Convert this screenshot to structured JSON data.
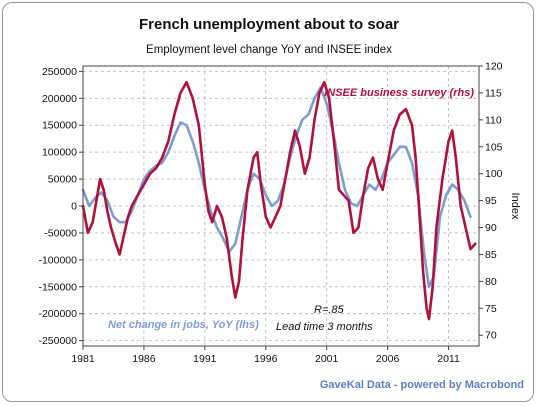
{
  "chart_data": {
    "type": "line",
    "title": "French unemployment about to soar",
    "subtitle": "Employment level change YoY and INSEE index",
    "xlabel": "",
    "ylabel_left": "",
    "ylabel_right": "Index",
    "xlim": [
      1981,
      2013.5
    ],
    "ylim_left": [
      -260000,
      260000
    ],
    "ylim_right": [
      68,
      120
    ],
    "x_ticks": [
      "1981",
      "1986",
      "1991",
      "1996",
      "2001",
      "2006",
      "2011"
    ],
    "y_ticks_left": [
      "250000",
      "200000",
      "150000",
      "100000",
      "50000",
      "0",
      "-50000",
      "-100000",
      "-150000",
      "-200000",
      "-250000"
    ],
    "y_ticks_right": [
      "120",
      "115",
      "110",
      "105",
      "100",
      "95",
      "90",
      "85",
      "80",
      "75",
      "70"
    ],
    "grid": true,
    "series": [
      {
        "name": "INSEE business survey (rhs)",
        "axis": "right",
        "color": "#b0113a",
        "points": [
          [
            1981.0,
            94
          ],
          [
            1981.4,
            89
          ],
          [
            1981.8,
            91
          ],
          [
            1982.1,
            95
          ],
          [
            1982.4,
            99
          ],
          [
            1982.7,
            97
          ],
          [
            1983.0,
            93
          ],
          [
            1983.3,
            90
          ],
          [
            1983.7,
            87
          ],
          [
            1984.0,
            85
          ],
          [
            1984.3,
            88
          ],
          [
            1984.7,
            92
          ],
          [
            1985.0,
            94
          ],
          [
            1985.5,
            96
          ],
          [
            1986.0,
            98
          ],
          [
            1986.5,
            100
          ],
          [
            1987.0,
            101
          ],
          [
            1987.5,
            103
          ],
          [
            1988.0,
            106
          ],
          [
            1988.5,
            111
          ],
          [
            1989.0,
            115
          ],
          [
            1989.5,
            117
          ],
          [
            1990.0,
            114
          ],
          [
            1990.5,
            109
          ],
          [
            1991.0,
            98
          ],
          [
            1991.3,
            93
          ],
          [
            1991.6,
            91
          ],
          [
            1992.0,
            94
          ],
          [
            1992.4,
            92
          ],
          [
            1992.8,
            88
          ],
          [
            1993.2,
            81
          ],
          [
            1993.5,
            77
          ],
          [
            1993.8,
            80
          ],
          [
            1994.1,
            88
          ],
          [
            1994.5,
            97
          ],
          [
            1995.0,
            103
          ],
          [
            1995.3,
            104
          ],
          [
            1995.6,
            98
          ],
          [
            1996.0,
            92
          ],
          [
            1996.4,
            90
          ],
          [
            1996.8,
            92
          ],
          [
            1997.2,
            94
          ],
          [
            1997.6,
            99
          ],
          [
            1998.0,
            104
          ],
          [
            1998.4,
            108
          ],
          [
            1998.8,
            105
          ],
          [
            1999.2,
            100
          ],
          [
            1999.6,
            103
          ],
          [
            2000.0,
            110
          ],
          [
            2000.4,
            115
          ],
          [
            2000.8,
            117
          ],
          [
            2001.2,
            114
          ],
          [
            2001.6,
            106
          ],
          [
            2002.0,
            97
          ],
          [
            2002.4,
            96
          ],
          [
            2002.8,
            95
          ],
          [
            2003.2,
            89
          ],
          [
            2003.6,
            90
          ],
          [
            2004.0,
            96
          ],
          [
            2004.4,
            101
          ],
          [
            2004.8,
            103
          ],
          [
            2005.2,
            99
          ],
          [
            2005.6,
            97
          ],
          [
            2006.0,
            102
          ],
          [
            2006.5,
            108
          ],
          [
            2007.0,
            111
          ],
          [
            2007.5,
            112
          ],
          [
            2008.0,
            109
          ],
          [
            2008.3,
            103
          ],
          [
            2008.6,
            93
          ],
          [
            2008.9,
            82
          ],
          [
            2009.2,
            75
          ],
          [
            2009.4,
            73
          ],
          [
            2009.7,
            79
          ],
          [
            2010.0,
            90
          ],
          [
            2010.5,
            99
          ],
          [
            2011.0,
            106
          ],
          [
            2011.3,
            108
          ],
          [
            2011.6,
            103
          ],
          [
            2012.0,
            94
          ],
          [
            2012.4,
            90
          ],
          [
            2012.8,
            86
          ],
          [
            2013.2,
            87
          ]
        ]
      },
      {
        "name": "Net change in jobs, YoY  (lhs)",
        "axis": "left",
        "color": "#7f9ccf",
        "points": [
          [
            1981.0,
            30000
          ],
          [
            1981.5,
            0
          ],
          [
            1982.0,
            15000
          ],
          [
            1982.5,
            25000
          ],
          [
            1983.0,
            10000
          ],
          [
            1983.5,
            -20000
          ],
          [
            1984.0,
            -30000
          ],
          [
            1984.5,
            -30000
          ],
          [
            1985.0,
            -10000
          ],
          [
            1985.5,
            20000
          ],
          [
            1986.0,
            50000
          ],
          [
            1986.5,
            65000
          ],
          [
            1987.0,
            75000
          ],
          [
            1987.5,
            80000
          ],
          [
            1988.0,
            100000
          ],
          [
            1988.5,
            130000
          ],
          [
            1989.0,
            155000
          ],
          [
            1989.5,
            150000
          ],
          [
            1990.0,
            120000
          ],
          [
            1990.5,
            80000
          ],
          [
            1991.0,
            30000
          ],
          [
            1991.5,
            -10000
          ],
          [
            1992.0,
            -40000
          ],
          [
            1992.5,
            -60000
          ],
          [
            1993.0,
            -85000
          ],
          [
            1993.5,
            -70000
          ],
          [
            1994.0,
            -20000
          ],
          [
            1994.5,
            30000
          ],
          [
            1995.0,
            60000
          ],
          [
            1995.5,
            50000
          ],
          [
            1996.0,
            20000
          ],
          [
            1996.5,
            0
          ],
          [
            1997.0,
            10000
          ],
          [
            1997.5,
            40000
          ],
          [
            1998.0,
            90000
          ],
          [
            1998.5,
            130000
          ],
          [
            1999.0,
            160000
          ],
          [
            1999.5,
            170000
          ],
          [
            2000.0,
            200000
          ],
          [
            2000.5,
            220000
          ],
          [
            2001.0,
            190000
          ],
          [
            2001.5,
            140000
          ],
          [
            2002.0,
            80000
          ],
          [
            2002.5,
            30000
          ],
          [
            2003.0,
            5000
          ],
          [
            2003.5,
            0
          ],
          [
            2004.0,
            20000
          ],
          [
            2004.5,
            40000
          ],
          [
            2005.0,
            30000
          ],
          [
            2005.5,
            50000
          ],
          [
            2006.0,
            80000
          ],
          [
            2006.5,
            95000
          ],
          [
            2007.0,
            110000
          ],
          [
            2007.5,
            110000
          ],
          [
            2008.0,
            80000
          ],
          [
            2008.5,
            20000
          ],
          [
            2009.0,
            -90000
          ],
          [
            2009.4,
            -150000
          ],
          [
            2009.8,
            -130000
          ],
          [
            2010.3,
            -20000
          ],
          [
            2010.8,
            20000
          ],
          [
            2011.3,
            40000
          ],
          [
            2011.8,
            30000
          ],
          [
            2012.3,
            10000
          ],
          [
            2012.8,
            -20000
          ]
        ]
      }
    ],
    "annotations": {
      "insee_label": "INSEE business survey (rhs)",
      "jobs_label": "Net change in jobs, YoY  (lhs)",
      "correlation": "R=.85",
      "lead_time": "Lead time 3 months"
    }
  },
  "footer": {
    "credit": "GaveKal Data - powered by Macrobond"
  }
}
